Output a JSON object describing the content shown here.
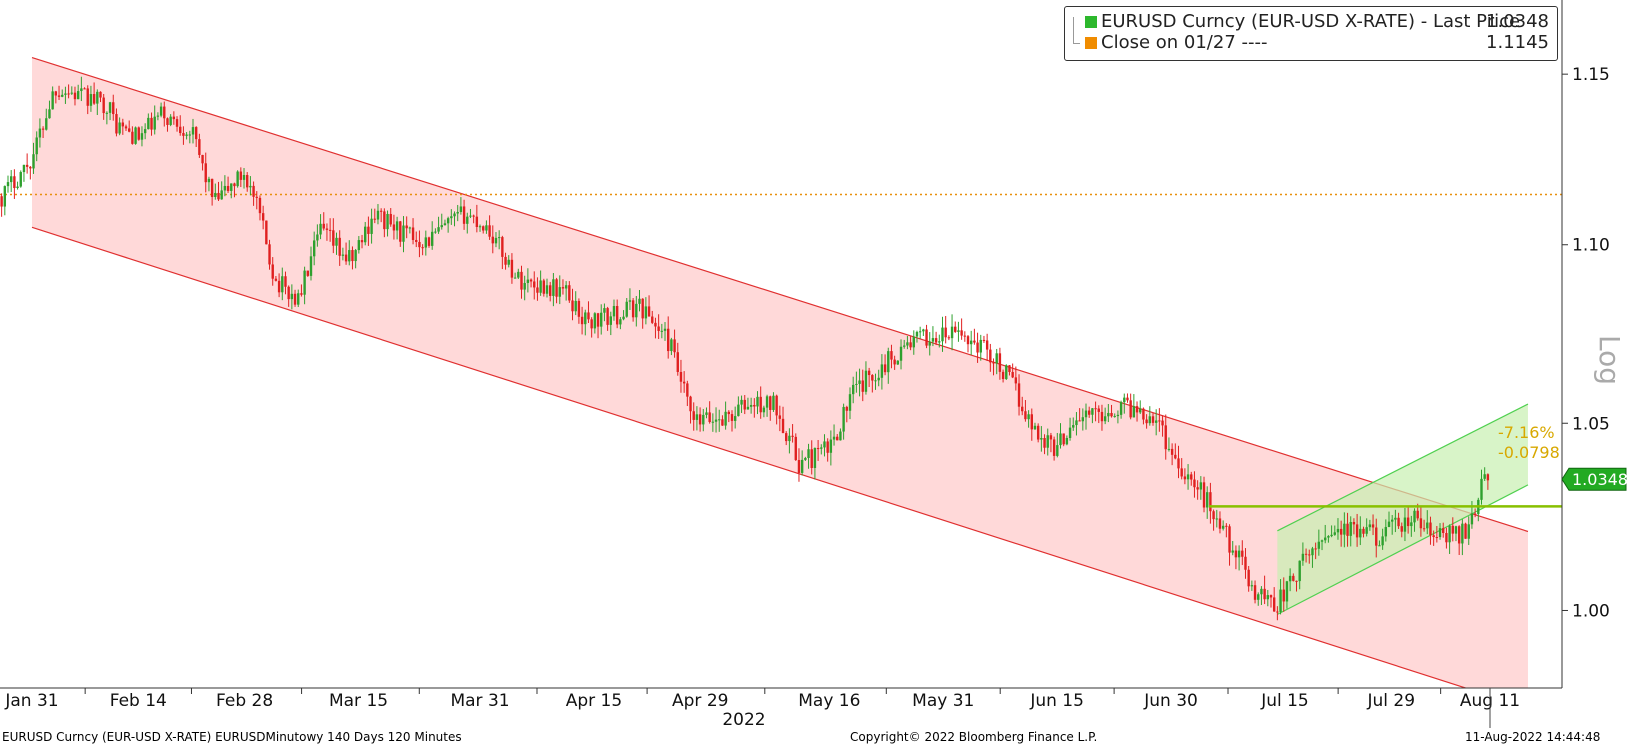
{
  "chart_data": {
    "type": "candlestick",
    "scale": "log",
    "ylim": [
      0.98,
      1.17
    ],
    "yticks": [
      1.0,
      1.05,
      1.1,
      1.15
    ],
    "ytick_labels": [
      "1.00",
      "1.05",
      "1.10",
      "1.15"
    ],
    "ylabel": "Log",
    "xticks": [
      "Jan 31",
      "Feb 14",
      "Feb 28",
      "Mar 15",
      "Mar 31",
      "Apr 15",
      "Apr 29",
      "May 16",
      "May 31",
      "Jun 15",
      "Jun 30",
      "Jul 15",
      "Jul 29",
      "Aug 11"
    ],
    "xlabel": "2022",
    "up_color": "#2ea02e",
    "down_color": "#e02020",
    "price_path": [
      [
        "Jan 27",
        1.114
      ],
      [
        "Jan 31",
        1.125
      ],
      [
        "Feb 3",
        1.146
      ],
      [
        "Feb 7",
        1.143
      ],
      [
        "Feb 10",
        1.141
      ],
      [
        "Feb 11",
        1.135
      ],
      [
        "Feb 14",
        1.131
      ],
      [
        "Feb 17",
        1.138
      ],
      [
        "Feb 21",
        1.133
      ],
      [
        "Feb 24",
        1.112
      ],
      [
        "Feb 28",
        1.121
      ],
      [
        "Mar 2",
        1.108
      ],
      [
        "Mar 4",
        1.09
      ],
      [
        "Mar 7",
        1.084
      ],
      [
        "Mar 10",
        1.104
      ],
      [
        "Mar 14",
        1.095
      ],
      [
        "Mar 17",
        1.109
      ],
      [
        "Mar 21",
        1.103
      ],
      [
        "Mar 24",
        1.101
      ],
      [
        "Mar 29",
        1.109
      ],
      [
        "Apr 1",
        1.105
      ],
      [
        "Apr 5",
        1.09
      ],
      [
        "Apr 11",
        1.087
      ],
      [
        "Apr 14",
        1.078
      ],
      [
        "Apr 18",
        1.08
      ],
      [
        "Apr 21",
        1.083
      ],
      [
        "Apr 25",
        1.072
      ],
      [
        "Apr 28",
        1.05
      ],
      [
        "May 3",
        1.052
      ],
      [
        "May 5",
        1.055
      ],
      [
        "May 9",
        1.055
      ],
      [
        "May 12",
        1.039
      ],
      [
        "May 16",
        1.043
      ],
      [
        "May 19",
        1.058
      ],
      [
        "May 23",
        1.066
      ],
      [
        "May 27",
        1.073
      ],
      [
        "May 31",
        1.074
      ],
      [
        "Jun 2",
        1.075
      ],
      [
        "Jun 6",
        1.07
      ],
      [
        "Jun 9",
        1.061
      ],
      [
        "Jun 12",
        1.048
      ],
      [
        "Jun 15",
        1.043
      ],
      [
        "Jun 17",
        1.051
      ],
      [
        "Jun 21",
        1.053
      ],
      [
        "Jun 24",
        1.055
      ],
      [
        "Jun 28",
        1.052
      ],
      [
        "Jun 30",
        1.042
      ],
      [
        "Jul 5",
        1.028
      ],
      [
        "Jul 8",
        1.017
      ],
      [
        "Jul 11",
        1.005
      ],
      [
        "Jul 14",
        1.002
      ],
      [
        "Jul 18",
        1.014
      ],
      [
        "Jul 21",
        1.022
      ],
      [
        "Jul 25",
        1.02
      ],
      [
        "Jul 28",
        1.02
      ],
      [
        "Aug 1",
        1.024
      ],
      [
        "Aug 4",
        1.019
      ],
      [
        "Aug 8",
        1.021
      ],
      [
        "Aug 10",
        1.034
      ],
      [
        "Aug 11",
        1.0348
      ]
    ],
    "reference_line": {
      "label": "Close on 01/27",
      "value": 1.1145,
      "color": "#e8900c",
      "style": "dotted"
    },
    "resistance_line": {
      "value": 1.0275,
      "color": "#88c000"
    },
    "downtrend_channel": {
      "upper": [
        [
          "Jan 31",
          1.155
        ],
        [
          "Aug 11",
          1.024
        ]
      ],
      "lower": [
        [
          "Jan 31",
          1.105
        ],
        [
          "Aug 11",
          0.978
        ]
      ],
      "fill": "#ffd9d9",
      "stroke": "#e03030"
    },
    "uptrend_channel": {
      "upper": [
        [
          "Jul 15",
          1.022
        ],
        [
          "Aug 11",
          1.05
        ]
      ],
      "lower": [
        [
          "Jul 15",
          1.0
        ],
        [
          "Aug 11",
          1.028
        ]
      ],
      "fill": "#c8f0b0",
      "stroke": "#50d050"
    },
    "change_annotation": {
      "percent": "-7.16%",
      "absolute": "-0.0798",
      "color": "#d8a800"
    },
    "last_price_tag": {
      "label": "1.0348",
      "value": 1.0348,
      "color": "#22aa22"
    },
    "legend": [
      {
        "label": "EURUSD Curncy (EUR-USD X-RATE) - Last Price",
        "value": "1.0348",
        "color": "#2db82d"
      },
      {
        "label": "Close on 01/27 ----",
        "value": "1.1145",
        "color": "#f08c00"
      }
    ]
  },
  "footer": {
    "security": "EURUSD Curncy (EUR-USD X-RATE) EURUSDMinutowy 140 Days 120 Minutes",
    "copyright": "Copyright© 2022 Bloomberg Finance L.P.",
    "timestamp": "11-Aug-2022 14:44:48"
  }
}
